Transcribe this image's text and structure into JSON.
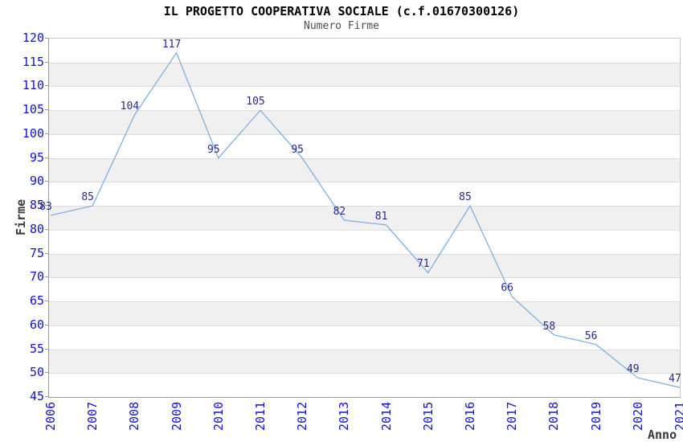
{
  "chart_data": {
    "type": "line",
    "title": "IL PROGETTO COOPERATIVA SOCIALE (c.f.01670300126)",
    "subtitle": "Numero Firme",
    "xlabel": "Anno",
    "ylabel": "Firme",
    "categories": [
      "2006",
      "2007",
      "2008",
      "2009",
      "2010",
      "2011",
      "2012",
      "2013",
      "2014",
      "2015",
      "2016",
      "2017",
      "2018",
      "2019",
      "2020",
      "2021"
    ],
    "values": [
      83,
      85,
      104,
      117,
      95,
      105,
      95,
      82,
      81,
      71,
      85,
      66,
      58,
      56,
      49,
      47
    ],
    "data_labels": [
      "83",
      "85",
      "104",
      "117",
      "95",
      "105",
      "95",
      "82",
      "81",
      "71",
      "85",
      "66",
      "58",
      "56",
      "49",
      "47"
    ],
    "ylim": [
      45,
      120
    ],
    "ytick_step": 5,
    "yticks": [
      45,
      50,
      55,
      60,
      65,
      70,
      75,
      80,
      85,
      90,
      95,
      100,
      105,
      110,
      115,
      120
    ],
    "grid": "horizontal-alternating-bands",
    "legend": "none",
    "colors": {
      "line": "#7db0e3",
      "tick_label": "#1313cf",
      "data_label": "#28288c",
      "title": "#000000",
      "subtitle": "#4d4d4d",
      "axis_title": "#3a3a3a",
      "band": "#f0f0f0",
      "gridline": "#dcdcdc",
      "border": "#9a9a9a",
      "background": "#ffffff"
    }
  }
}
